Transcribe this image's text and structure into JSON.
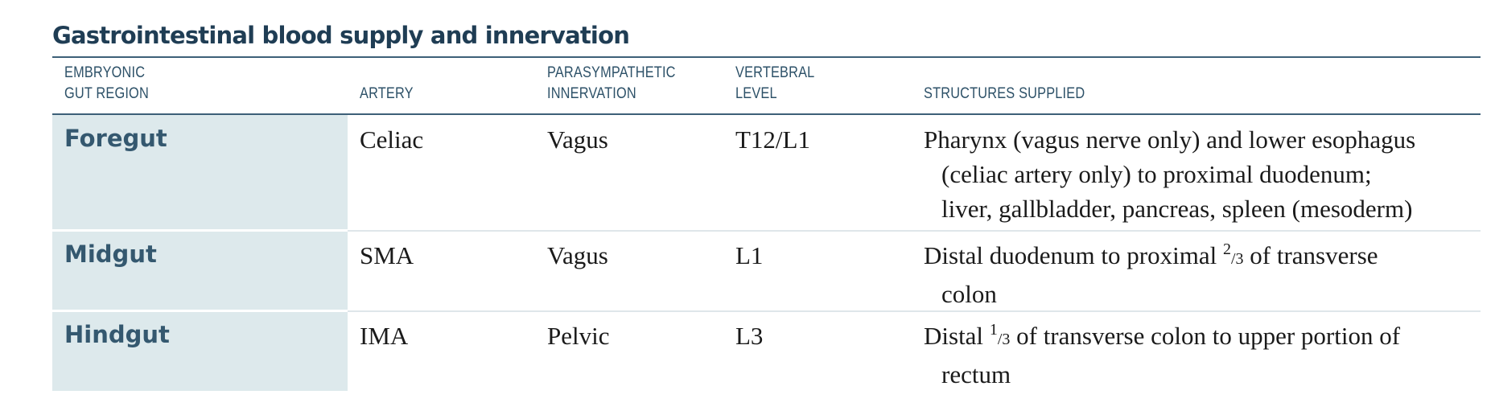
{
  "title": "Gastrointestinal blood supply and innervation",
  "columns": {
    "region": [
      "EMBRYONIC",
      "GUT REGION"
    ],
    "artery": [
      "ARTERY"
    ],
    "parasympathetic": [
      "PARASYMPATHETIC",
      "INNERVATION"
    ],
    "vertebral": [
      "VERTEBRAL",
      "LEVEL"
    ],
    "structures": [
      "STRUCTURES SUPPLIED"
    ]
  },
  "rows": [
    {
      "region": "Foregut",
      "artery": "Celiac",
      "parasympathetic": "Vagus",
      "vertebral": "T12/L1",
      "structures": {
        "line1": "Pharynx (vagus nerve only) and lower esophagus",
        "line2": "(celiac artery only) to proximal duodenum;",
        "line3": "liver, gallbladder, pancreas, spleen (mesoderm)"
      }
    },
    {
      "region": "Midgut",
      "artery": "SMA",
      "parasympathetic": "Vagus",
      "vertebral": "L1",
      "structures": {
        "pre": "Distal duodenum to proximal ",
        "frac_num": "2",
        "frac_den": "/3",
        "post": " of transverse",
        "line2": "colon"
      }
    },
    {
      "region": "Hindgut",
      "artery": "IMA",
      "parasympathetic": "Pelvic",
      "vertebral": "L3",
      "structures": {
        "pre": "Distal ",
        "frac_num": "1",
        "frac_den": "/3",
        "post": " of transverse colon to upper portion of",
        "line2": "rectum"
      }
    }
  ]
}
